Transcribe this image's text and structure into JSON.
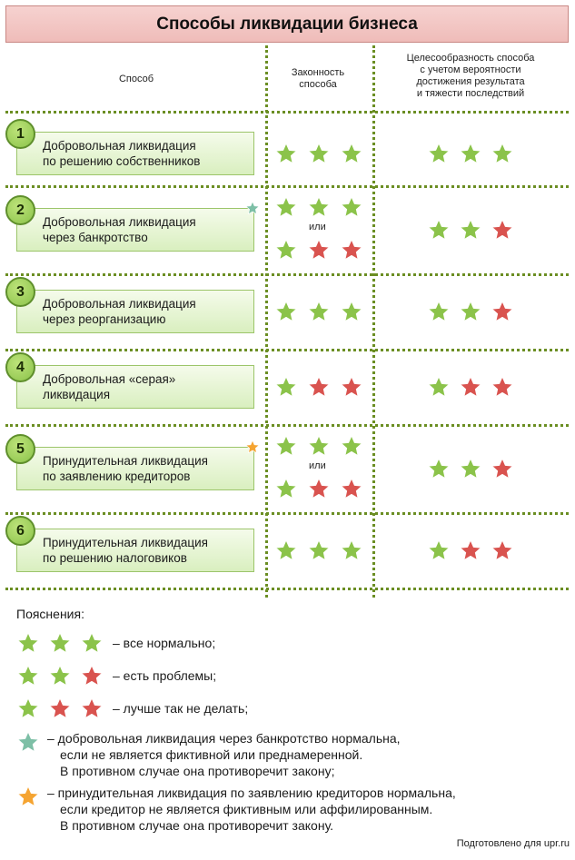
{
  "title": "Способы ликвидации бизнеса",
  "columns": {
    "method": "Способ",
    "legality_line1": "Законность",
    "legality_line2": "способа",
    "feasibility_line1": "Целесообразность способа",
    "feasibility_line2": "с учетом вероятности",
    "feasibility_line3": "достижения результата",
    "feasibility_line4": "и тяжести последствий"
  },
  "colors": {
    "green": "#8bc34a",
    "red": "#d9534f",
    "teal": "#7dbfa6",
    "orange": "#f5a431"
  },
  "or_label": "или",
  "rows": [
    {
      "num": "1",
      "line1": "Добровольная ликвидация",
      "line2": "по решению собственников",
      "legality": [
        [
          "green",
          "green",
          "green"
        ]
      ],
      "feasibility": [
        "green",
        "green",
        "green"
      ],
      "mark": ""
    },
    {
      "num": "2",
      "line1": "Добровольная ликвидация",
      "line2": "через банкротство",
      "legality": [
        [
          "green",
          "green",
          "green"
        ],
        [
          "green",
          "red",
          "red"
        ]
      ],
      "feasibility": [
        "green",
        "green",
        "red"
      ],
      "mark": "teal"
    },
    {
      "num": "3",
      "line1": "Добровольная ликвидация",
      "line2": "через реорганизацию",
      "legality": [
        [
          "green",
          "green",
          "green"
        ]
      ],
      "feasibility": [
        "green",
        "green",
        "red"
      ],
      "mark": ""
    },
    {
      "num": "4",
      "line1": "Добровольная «серая»",
      "line2": "ликвидация",
      "legality": [
        [
          "green",
          "red",
          "red"
        ]
      ],
      "feasibility": [
        "green",
        "red",
        "red"
      ],
      "mark": ""
    },
    {
      "num": "5",
      "line1": "Принудительная ликвидация",
      "line2": "по заявлению кредиторов",
      "legality": [
        [
          "green",
          "green",
          "green"
        ],
        [
          "green",
          "red",
          "red"
        ]
      ],
      "feasibility": [
        "green",
        "green",
        "red"
      ],
      "mark": "orange"
    },
    {
      "num": "6",
      "line1": "Принудительная ликвидация",
      "line2": "по решению налоговиков",
      "legality": [
        [
          "green",
          "green",
          "green"
        ]
      ],
      "feasibility": [
        "green",
        "red",
        "red"
      ],
      "mark": ""
    }
  ],
  "legend": {
    "title": "Пояснения:",
    "items": [
      {
        "stars": [
          "green",
          "green",
          "green"
        ],
        "text": "– все нормально;"
      },
      {
        "stars": [
          "green",
          "green",
          "red"
        ],
        "text": "– есть проблемы;"
      },
      {
        "stars": [
          "green",
          "red",
          "red"
        ],
        "text": "– лучше так не делать;"
      }
    ],
    "teal_note": {
      "line1": "– добровольная ликвидация через банкротство нормальна,",
      "line2": "если не является фиктивной или преднамеренной.",
      "line3": "В противном случае она противоречит закону;"
    },
    "orange_note": {
      "line1": "– принудительная ликвидация по заявлению кредиторов нормальна,",
      "line2": "если кредитор не является фиктивным или аффилированным.",
      "line3": "В противном случае она противоречит закону."
    }
  },
  "credit": "Подготовлено для upr.ru"
}
